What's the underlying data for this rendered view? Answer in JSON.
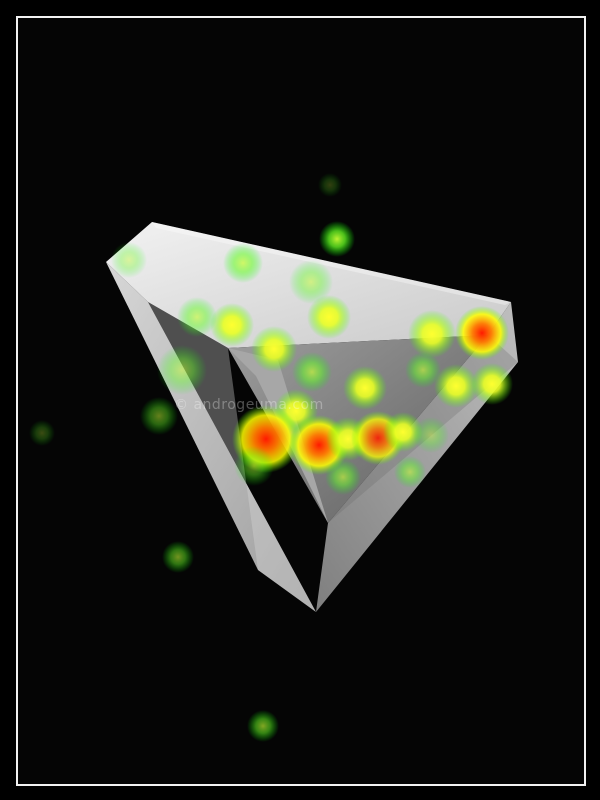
{
  "photo": {
    "subject": "impossible-triangle-object",
    "watermark": "© androgeuma.com",
    "overlay": "attention-heatmap",
    "colors": {
      "background": "#050505",
      "frame_border": "#f2f2f2",
      "surface_light": "#e8e8e8",
      "surface_mid": "#bdbdbd",
      "surface_dark": "#8e8e8e",
      "heat_low": "#5cff2a",
      "heat_mid": "#ffff00",
      "heat_high": "#ff0000"
    }
  }
}
